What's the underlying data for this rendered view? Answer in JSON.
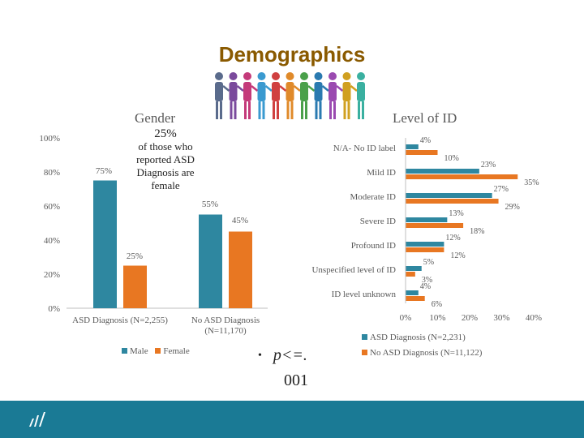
{
  "title": "Demographics",
  "colors": {
    "asd": "#2e87a0",
    "no_asd": "#e87722",
    "footer": "#1a7a95",
    "title": "#8a5a00"
  },
  "icons": {
    "people": "people-holding-hands-icon",
    "logo": "brand-logo-icon"
  },
  "callout": {
    "pct": "25%",
    "line1": "of those who",
    "line2": "reported ASD",
    "line3": "Diagnosis are",
    "line4": "female"
  },
  "pvalue": {
    "bullet": "•",
    "text": "p<=.",
    "text2": "001"
  },
  "chart_data": [
    {
      "type": "bar",
      "title": "Gender",
      "categories": [
        "ASD Diagnosis (N=2,255)",
        "No ASD Diagnosis (N=11,170)"
      ],
      "series": [
        {
          "name": "Male",
          "values": [
            75,
            55
          ]
        },
        {
          "name": "Female",
          "values": [
            25,
            45
          ]
        }
      ],
      "yticks": [
        "0%",
        "20%",
        "40%",
        "60%",
        "80%",
        "100%"
      ],
      "ylim": [
        0,
        100
      ],
      "legend": "bottom"
    },
    {
      "type": "bar",
      "orientation": "horizontal",
      "title": "Level of ID",
      "categories": [
        "N/A- No ID label",
        "Mild ID",
        "Moderate ID",
        "Severe ID",
        "Profound ID",
        "Unspecified level of ID",
        "ID level unknown"
      ],
      "series": [
        {
          "name": "ASD Diagnosis (N=2,231)",
          "values": [
            4,
            23,
            27,
            13,
            12,
            5,
            4
          ]
        },
        {
          "name": "No ASD Diagnosis (N=11,122)",
          "values": [
            10,
            35,
            29,
            18,
            12,
            3,
            6
          ]
        }
      ],
      "xticks": [
        "0%",
        "10%",
        "20%",
        "30%",
        "40%"
      ],
      "xlim": [
        0,
        40
      ],
      "legend": "bottom"
    }
  ]
}
